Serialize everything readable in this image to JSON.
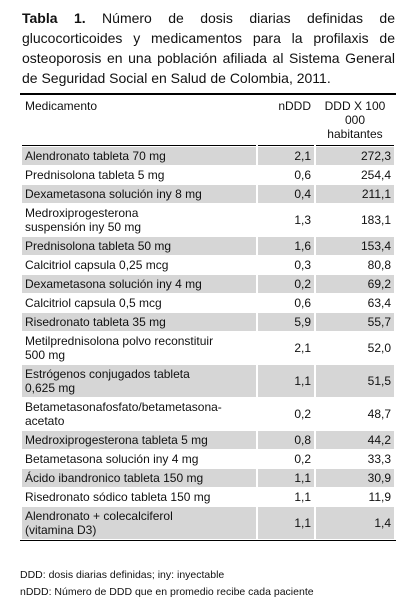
{
  "caption": {
    "label": "Tabla 1.",
    "text": "Número de dosis diarias definidas de glucocorticoides y medicamentos para la profilaxis de osteoporosis en una población afiliada al Sistema General de Seguridad Social en Salud de Colombia, 2011."
  },
  "table": {
    "headers": [
      "Medicamento",
      "nDDD",
      "DDD X 100 000 habitantes"
    ],
    "rows": [
      [
        "Alendronato tableta 70 mg",
        "2,1",
        "272,3"
      ],
      [
        "Prednisolona tableta 5 mg",
        "0,6",
        "254,4"
      ],
      [
        "Dexametasona solución iny 8 mg",
        "0,4",
        "211,1"
      ],
      [
        "Medroxiprogesterona\nsuspensión iny 50 mg",
        "1,3",
        "183,1"
      ],
      [
        "Prednisolona tableta 50 mg",
        "1,6",
        "153,4"
      ],
      [
        "Calcitriol capsula  0,25 mcg",
        "0,3",
        "80,8"
      ],
      [
        "Dexametasona solución iny  4 mg",
        "0,2",
        "69,2"
      ],
      [
        "Calcitriol capsula  0,5 mcg",
        "0,6",
        "63,4"
      ],
      [
        "Risedronato tableta 35 mg",
        "5,9",
        "55,7"
      ],
      [
        "Metilprednisolona polvo reconstituir\n500 mg",
        "2,1",
        "52,0"
      ],
      [
        "Estrógenos conjugados tableta\n0,625 mg",
        "1,1",
        "51,5"
      ],
      [
        "Betametasonafosfato/betametasona-\nacetato",
        "0,2",
        "48,7"
      ],
      [
        "Medroxiprogesterona tableta 5 mg",
        "0,8",
        "44,2"
      ],
      [
        "Betametasona solución iny 4 mg",
        "0,2",
        "33,3"
      ],
      [
        "Ácido ibandronico tableta 150 mg",
        "1,1",
        "30,9"
      ],
      [
        "Risedronato sódico tableta 150 mg",
        "1,1",
        "11,9"
      ],
      [
        "Alendronato + colecalciferol\n(vitamina D3)",
        "1,1",
        "1,4"
      ]
    ]
  },
  "footnotes": [
    "DDD: dosis diarias definidas; iny: inyectable",
    "nDDD: Número de DDD que en promedio recibe cada paciente"
  ]
}
